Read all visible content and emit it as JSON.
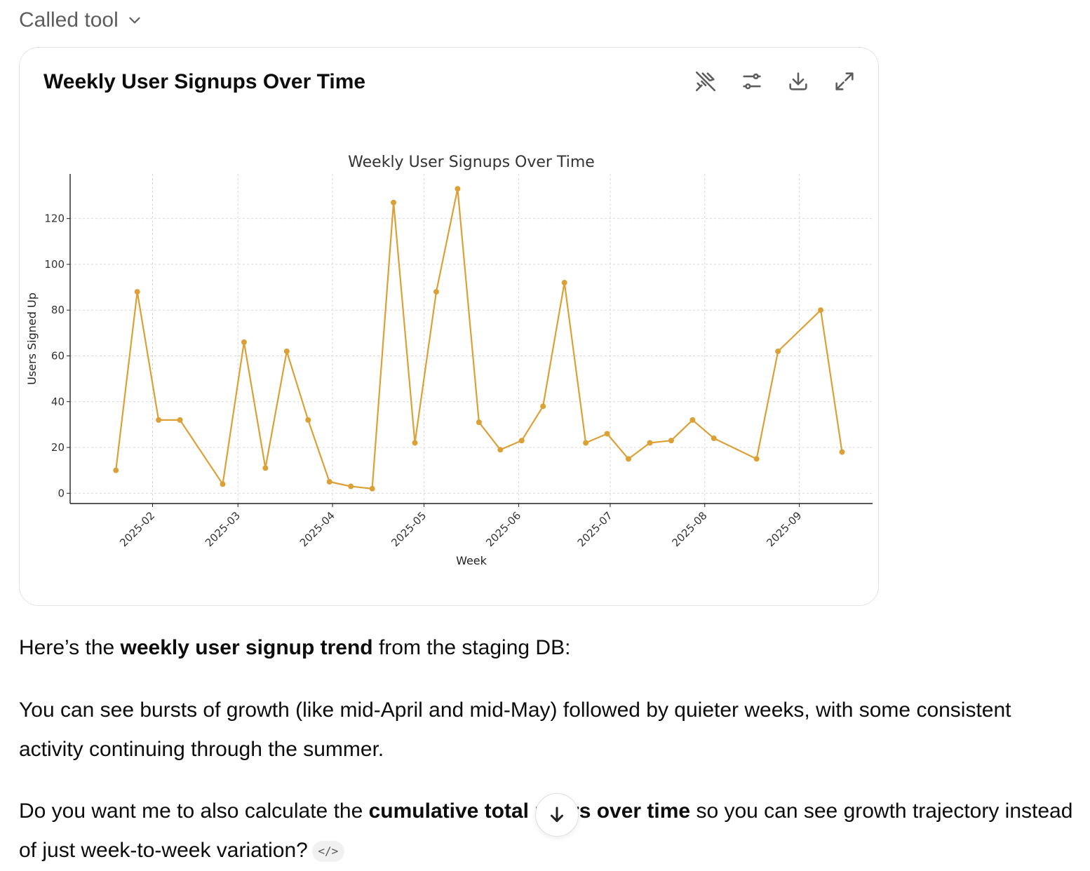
{
  "header": {
    "called_tool_label": "Called tool"
  },
  "card": {
    "title": "Weekly User Signups Over Time",
    "actions": [
      "pin-off-icon",
      "sliders-icon",
      "download-icon",
      "expand-icon"
    ]
  },
  "chart_data": {
    "type": "line",
    "title": "Weekly User Signups Over Time",
    "xlabel": "Week",
    "ylabel": "Users Signed Up",
    "x_ticks": [
      "2025-02",
      "2025-03",
      "2025-04",
      "2025-05",
      "2025-06",
      "2025-07",
      "2025-08",
      "2025-09"
    ],
    "y_ticks": [
      0,
      20,
      40,
      60,
      80,
      100,
      120
    ],
    "xlim": [
      "2025-01-05",
      "2025-09-25"
    ],
    "ylim": [
      -4.5,
      139.5
    ],
    "grid": true,
    "color": "#dba137",
    "series": [
      {
        "points": [
          {
            "x": "2025-01-20",
            "y": 10
          },
          {
            "x": "2025-01-27",
            "y": 88
          },
          {
            "x": "2025-02-03",
            "y": 32
          },
          {
            "x": "2025-02-10",
            "y": 32
          },
          {
            "x": "2025-02-24",
            "y": 4
          },
          {
            "x": "2025-03-03",
            "y": 66
          },
          {
            "x": "2025-03-10",
            "y": 11
          },
          {
            "x": "2025-03-17",
            "y": 62
          },
          {
            "x": "2025-03-24",
            "y": 32
          },
          {
            "x": "2025-03-31",
            "y": 5
          },
          {
            "x": "2025-04-07",
            "y": 3
          },
          {
            "x": "2025-04-14",
            "y": 2
          },
          {
            "x": "2025-04-21",
            "y": 127
          },
          {
            "x": "2025-04-28",
            "y": 22
          },
          {
            "x": "2025-05-05",
            "y": 88
          },
          {
            "x": "2025-05-12",
            "y": 133
          },
          {
            "x": "2025-05-19",
            "y": 31
          },
          {
            "x": "2025-05-26",
            "y": 19
          },
          {
            "x": "2025-06-02",
            "y": 23
          },
          {
            "x": "2025-06-09",
            "y": 38
          },
          {
            "x": "2025-06-16",
            "y": 92
          },
          {
            "x": "2025-06-23",
            "y": 22
          },
          {
            "x": "2025-06-30",
            "y": 26
          },
          {
            "x": "2025-07-07",
            "y": 15
          },
          {
            "x": "2025-07-14",
            "y": 22
          },
          {
            "x": "2025-07-21",
            "y": 23
          },
          {
            "x": "2025-07-28",
            "y": 32
          },
          {
            "x": "2025-08-04",
            "y": 24
          },
          {
            "x": "2025-08-18",
            "y": 15
          },
          {
            "x": "2025-08-25",
            "y": 62
          },
          {
            "x": "2025-09-08",
            "y": 80
          },
          {
            "x": "2025-09-15",
            "y": 18
          }
        ]
      }
    ]
  },
  "message": {
    "p1_pre": "Here’s the ",
    "p1_bold": "weekly user signup trend",
    "p1_post": " from the staging DB:",
    "p2": "You can see bursts of growth (like mid-April and mid-May) followed by quieter weeks, with some consistent activity continuing through the summer.",
    "p3_pre": "Do you want me to also calculate the ",
    "p3_bold": "cumulative total users over time",
    "p3_post": " so you can see growth trajectory instead of just week-to-week variation?",
    "code_chip": "</>"
  }
}
